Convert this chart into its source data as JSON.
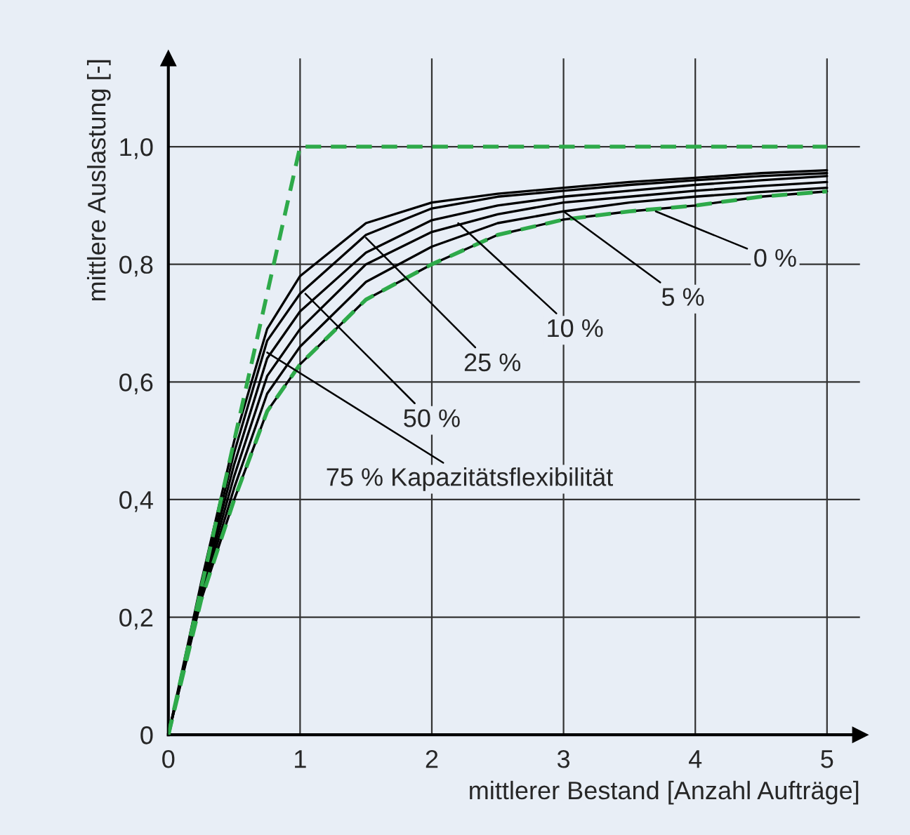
{
  "chart_data": {
    "type": "line",
    "xlabel": "mittlerer Bestand [Anzahl Aufträge]",
    "ylabel": "mittlere Auslastung [-]",
    "x": [
      0,
      0.25,
      0.5,
      0.75,
      1,
      1.5,
      2,
      2.5,
      3,
      3.5,
      4,
      4.5,
      5
    ],
    "series": [
      {
        "color": "#000000",
        "values": [
          0,
          0.23,
          0.4,
          0.55,
          0.63,
          0.74,
          0.8,
          0.85,
          0.876,
          0.89,
          0.9,
          0.915,
          0.924
        ]
      },
      {
        "color": "#000000",
        "values": [
          0,
          0.235,
          0.42,
          0.58,
          0.66,
          0.77,
          0.83,
          0.87,
          0.89,
          0.905,
          0.915,
          0.923,
          0.93
        ]
      },
      {
        "color": "#000000",
        "values": [
          0,
          0.24,
          0.44,
          0.61,
          0.69,
          0.8,
          0.855,
          0.885,
          0.905,
          0.915,
          0.925,
          0.933,
          0.94
        ]
      },
      {
        "color": "#000000",
        "values": [
          0,
          0.245,
          0.46,
          0.64,
          0.72,
          0.82,
          0.875,
          0.9,
          0.915,
          0.925,
          0.935,
          0.943,
          0.95
        ]
      },
      {
        "color": "#000000",
        "values": [
          0,
          0.25,
          0.48,
          0.67,
          0.75,
          0.85,
          0.895,
          0.915,
          0.925,
          0.935,
          0.943,
          0.95,
          0.955
        ]
      },
      {
        "color": "#000000",
        "values": [
          0,
          0.26,
          0.5,
          0.69,
          0.78,
          0.87,
          0.905,
          0.92,
          0.93,
          0.94,
          0.947,
          0.955,
          0.96
        ]
      },
      {
        "color": "#2eaa4a",
        "line_style": "dashed",
        "values": [
          0,
          0.23,
          0.4,
          0.55,
          0.63,
          0.74,
          0.8,
          0.85,
          0.876,
          0.89,
          0.9,
          0.915,
          0.924
        ]
      },
      {
        "color": "#2eaa4a",
        "line_style": "dashed",
        "x": [
          0,
          1,
          5
        ],
        "values": [
          0,
          1,
          1
        ]
      }
    ],
    "annotations": [
      {
        "text": "0 %",
        "x": 3.7,
        "y": 0.89
      },
      {
        "text": "5 %",
        "x": 3.0,
        "y": 0.89
      },
      {
        "text": "10 %",
        "x": 2.2,
        "y": 0.87
      },
      {
        "text": "25 %",
        "x": 1.5,
        "y": 0.845
      },
      {
        "text": "50 %",
        "x": 1.04,
        "y": 0.75
      },
      {
        "text": "75 % Kapazitätsflexibilität",
        "x": 0.75,
        "y": 0.65
      }
    ],
    "xlim": [
      0,
      5.25
    ],
    "ylim": [
      0,
      1.15
    ],
    "xticks": [
      0,
      1,
      2,
      3,
      4,
      5
    ],
    "yticks": [
      0,
      {
        "value": 0.2,
        "label": "0,2"
      },
      {
        "value": 0.4,
        "label": "0,4"
      },
      {
        "value": 0.6,
        "label": "0,6"
      },
      {
        "value": 0.8,
        "label": "0,8"
      },
      {
        "value": 1.0,
        "label": "1,0"
      }
    ],
    "grid": true,
    "line_style": "solid",
    "marker": "none",
    "legend": false
  }
}
